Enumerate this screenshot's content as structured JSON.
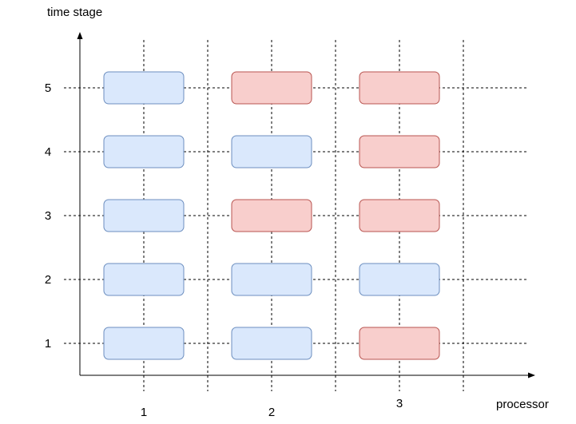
{
  "axes": {
    "y_label": "time stage",
    "x_label": "processor"
  },
  "time_stages": [
    "1",
    "2",
    "3",
    "4",
    "5"
  ],
  "processors": [
    "1",
    "2",
    "3"
  ],
  "colors": {
    "blue_fill": "#dae8fc",
    "blue_stroke": "#6c8ebf",
    "red_fill": "#f8cecc",
    "red_stroke": "#b85450",
    "axis": "#000000",
    "grid": "#000000"
  },
  "cells": [
    {
      "stage": "5",
      "processor": "1",
      "color": "blue"
    },
    {
      "stage": "5",
      "processor": "2",
      "color": "red"
    },
    {
      "stage": "5",
      "processor": "3",
      "color": "red"
    },
    {
      "stage": "4",
      "processor": "1",
      "color": "blue"
    },
    {
      "stage": "4",
      "processor": "2",
      "color": "blue"
    },
    {
      "stage": "4",
      "processor": "3",
      "color": "red"
    },
    {
      "stage": "3",
      "processor": "1",
      "color": "blue"
    },
    {
      "stage": "3",
      "processor": "2",
      "color": "red"
    },
    {
      "stage": "3",
      "processor": "3",
      "color": "red"
    },
    {
      "stage": "2",
      "processor": "1",
      "color": "blue"
    },
    {
      "stage": "2",
      "processor": "2",
      "color": "blue"
    },
    {
      "stage": "2",
      "processor": "3",
      "color": "blue"
    },
    {
      "stage": "1",
      "processor": "1",
      "color": "blue"
    },
    {
      "stage": "1",
      "processor": "2",
      "color": "blue"
    },
    {
      "stage": "1",
      "processor": "3",
      "color": "red"
    }
  ]
}
